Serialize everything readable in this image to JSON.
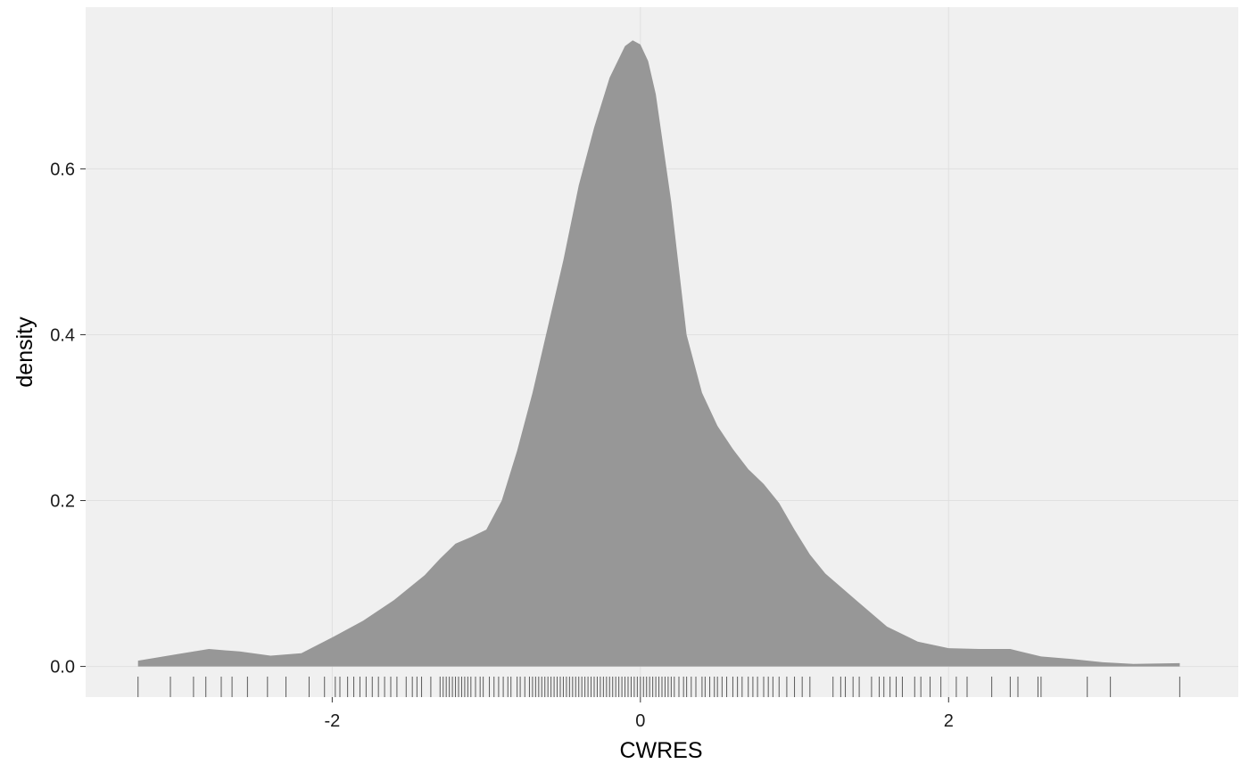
{
  "chart_data": {
    "type": "area",
    "subtype": "density",
    "title": "",
    "xlabel": "CWRES",
    "ylabel": "density",
    "xlim": [
      -3.6,
      3.88
    ],
    "ylim": [
      -0.037,
      0.795
    ],
    "x_ticks": [
      -2,
      0,
      2
    ],
    "x_tick_labels": [
      "-2",
      "0",
      "2"
    ],
    "y_ticks": [
      0.0,
      0.2,
      0.4,
      0.6
    ],
    "y_tick_labels": [
      "0.0",
      "0.2",
      "0.4",
      "0.6"
    ],
    "grid": true,
    "legend": "none",
    "colors": {
      "panel_background": "#f0f0f0",
      "grid": "#e0e0e0",
      "fill": "#979797",
      "rug": "#5a5a5a",
      "text": "#1a1a1a"
    },
    "density_curve": {
      "x": [
        -3.26,
        -3.0,
        -2.8,
        -2.6,
        -2.4,
        -2.2,
        -2.0,
        -1.8,
        -1.6,
        -1.4,
        -1.3,
        -1.2,
        -1.1,
        -1.0,
        -0.9,
        -0.8,
        -0.7,
        -0.6,
        -0.5,
        -0.4,
        -0.3,
        -0.2,
        -0.1,
        -0.05,
        0.0,
        0.05,
        0.1,
        0.2,
        0.3,
        0.4,
        0.5,
        0.6,
        0.7,
        0.8,
        0.9,
        1.0,
        1.1,
        1.2,
        1.4,
        1.6,
        1.8,
        2.0,
        2.2,
        2.4,
        2.6,
        2.8,
        3.0,
        3.2,
        3.5
      ],
      "y": [
        0.007,
        0.015,
        0.021,
        0.018,
        0.013,
        0.016,
        0.035,
        0.055,
        0.08,
        0.11,
        0.13,
        0.148,
        0.156,
        0.165,
        0.2,
        0.26,
        0.33,
        0.41,
        0.49,
        0.58,
        0.65,
        0.71,
        0.748,
        0.755,
        0.75,
        0.73,
        0.69,
        0.56,
        0.4,
        0.33,
        0.29,
        0.262,
        0.238,
        0.22,
        0.197,
        0.165,
        0.135,
        0.112,
        0.08,
        0.048,
        0.03,
        0.022,
        0.021,
        0.021,
        0.012,
        0.009,
        0.005,
        0.003,
        0.004
      ]
    },
    "rug": [
      -3.26,
      -3.05,
      -2.9,
      -2.82,
      -2.72,
      -2.65,
      -2.55,
      -2.42,
      -2.3,
      -2.15,
      -2.05,
      -1.98,
      -1.95,
      -1.9,
      -1.86,
      -1.82,
      -1.78,
      -1.74,
      -1.7,
      -1.66,
      -1.62,
      -1.58,
      -1.52,
      -1.48,
      -1.45,
      -1.42,
      -1.36,
      -1.3,
      -1.28,
      -1.26,
      -1.24,
      -1.22,
      -1.2,
      -1.18,
      -1.16,
      -1.14,
      -1.12,
      -1.1,
      -1.07,
      -1.04,
      -1.02,
      -0.98,
      -0.95,
      -0.92,
      -0.89,
      -0.86,
      -0.84,
      -0.8,
      -0.78,
      -0.75,
      -0.72,
      -0.7,
      -0.68,
      -0.66,
      -0.64,
      -0.62,
      -0.6,
      -0.58,
      -0.56,
      -0.54,
      -0.52,
      -0.5,
      -0.48,
      -0.46,
      -0.44,
      -0.42,
      -0.4,
      -0.38,
      -0.36,
      -0.34,
      -0.32,
      -0.3,
      -0.28,
      -0.26,
      -0.24,
      -0.22,
      -0.2,
      -0.18,
      -0.16,
      -0.14,
      -0.12,
      -0.1,
      -0.08,
      -0.06,
      -0.04,
      -0.02,
      0.0,
      0.02,
      0.04,
      0.06,
      0.08,
      0.1,
      0.12,
      0.14,
      0.16,
      0.18,
      0.2,
      0.22,
      0.25,
      0.28,
      0.3,
      0.33,
      0.36,
      0.4,
      0.42,
      0.45,
      0.48,
      0.5,
      0.53,
      0.56,
      0.6,
      0.63,
      0.66,
      0.7,
      0.73,
      0.76,
      0.8,
      0.83,
      0.86,
      0.9,
      0.95,
      1.0,
      1.05,
      1.1,
      1.25,
      1.3,
      1.33,
      1.38,
      1.42,
      1.5,
      1.55,
      1.58,
      1.62,
      1.66,
      1.7,
      1.78,
      1.82,
      1.88,
      1.95,
      2.05,
      2.12,
      2.28,
      2.4,
      2.45,
      2.58,
      2.6,
      2.9,
      3.05,
      3.5
    ]
  }
}
